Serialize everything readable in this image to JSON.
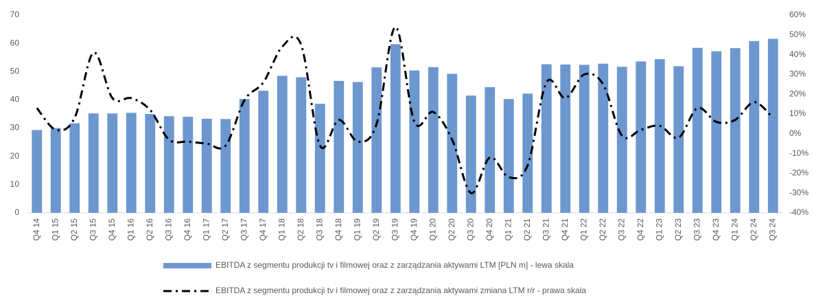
{
  "chart_data": {
    "type": "bar-line",
    "categories": [
      "Q4 14",
      "Q1 15",
      "Q2 15",
      "Q3 15",
      "Q4 15",
      "Q1 16",
      "Q2 16",
      "Q3 16",
      "Q4 16",
      "Q1 17",
      "Q2 17",
      "Q3 17",
      "Q4 17",
      "Q1 18",
      "Q2 18",
      "Q3 18",
      "Q4 18",
      "Q1 19",
      "Q2 19",
      "Q3 19",
      "Q4 19",
      "Q1 20",
      "Q2 20",
      "Q3 20",
      "Q4 20",
      "Q1 21",
      "Q2 21",
      "Q3 21",
      "Q4 21",
      "Q1 22",
      "Q2 22",
      "Q3 22",
      "Q4 22",
      "Q1 23",
      "Q2 23",
      "Q3 23",
      "Q4 23",
      "Q1 24",
      "Q2 24",
      "Q3 24"
    ],
    "series": [
      {
        "name": "EBITDA z segmentu produkcji tv i filmowej oraz z zarządzania aktywami LTM [PLN m] - lewa skala",
        "type": "bar",
        "color": "#6d97cf",
        "values": [
          29.3,
          30,
          31.7,
          35.2,
          35.2,
          35.4,
          35,
          34.2,
          34,
          33.3,
          33.2,
          40.3,
          43.2,
          48.5,
          48,
          38.6,
          46.7,
          46.3,
          51.5,
          59.7,
          50.4,
          51.6,
          49.2,
          41.5,
          44.5,
          40.3,
          42.2,
          52.6,
          52.5,
          52.4,
          52.8,
          51.7,
          53.6,
          54.4,
          51.9,
          58.4,
          57.2,
          58.3,
          60.8,
          61.6
        ]
      },
      {
        "name": "EBITDA z segmentu produkcji tv i filmowej oraz z zarządzania aktywami zmiana LTM r/r - prawa skala",
        "type": "line",
        "axis": "y2",
        "color": "#000000",
        "values": [
          13,
          2,
          8,
          41,
          18,
          18,
          12,
          -3,
          -4,
          -5,
          -6,
          17,
          26,
          44,
          45,
          -6,
          7,
          -4,
          5,
          54,
          6,
          11,
          -3,
          -30,
          -12,
          -22,
          -16,
          26,
          18,
          30,
          25,
          -1,
          2,
          4,
          -2,
          13,
          6,
          7,
          16,
          8
        ]
      }
    ],
    "ylim": [
      0,
      70
    ],
    "yticks": [
      0,
      10,
      20,
      30,
      40,
      50,
      60,
      70
    ],
    "y2lim": [
      -40,
      60
    ],
    "y2ticks": [
      {
        "value": -40,
        "label": "-40%"
      },
      {
        "value": -30,
        "label": "-30%"
      },
      {
        "value": -20,
        "label": "-20%"
      },
      {
        "value": -10,
        "label": "-10%"
      },
      {
        "value": 0,
        "label": "0%"
      },
      {
        "value": 10,
        "label": "10%"
      },
      {
        "value": 20,
        "label": "20%"
      },
      {
        "value": 30,
        "label": "30%"
      },
      {
        "value": 40,
        "label": "40%"
      },
      {
        "value": 50,
        "label": "50%"
      },
      {
        "value": 60,
        "label": "60%"
      }
    ],
    "grid": false
  }
}
